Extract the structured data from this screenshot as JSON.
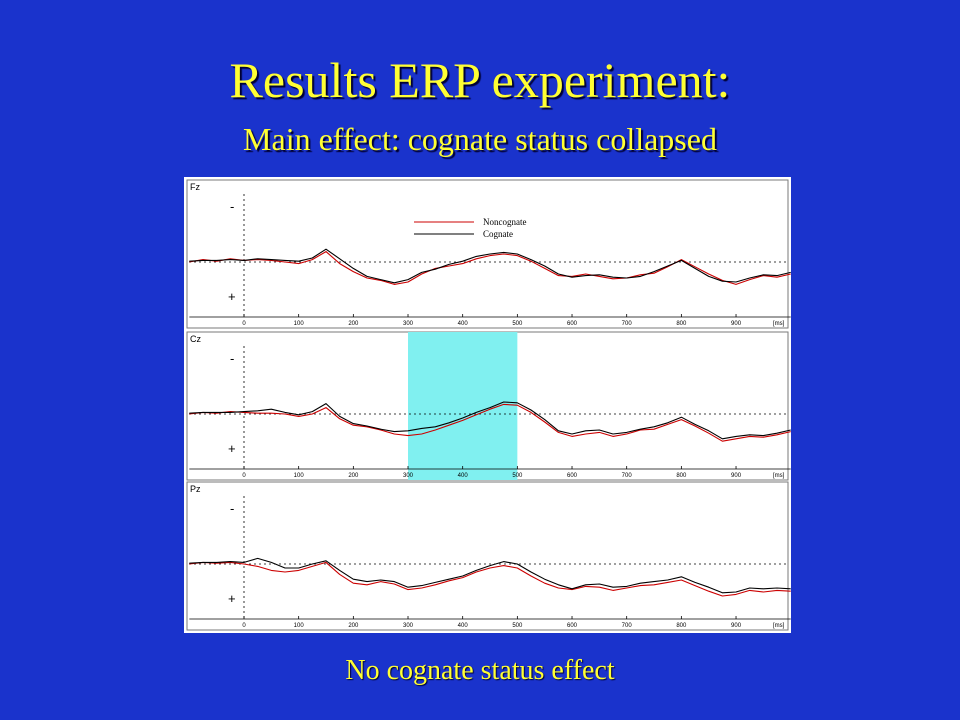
{
  "slide": {
    "title": "Results ERP experiment:",
    "subtitle": "Main effect: cognate status collapsed",
    "footer": "No cognate status effect"
  },
  "colors": {
    "background": "#1a33cc",
    "title_text": "#ffff33",
    "highlight_window": "#80f0f0",
    "noncognate": "#cc0000",
    "cognate": "#000000"
  },
  "chart_data": {
    "type": "line",
    "x_unit": "[ms]",
    "xlim": [
      -100,
      1000
    ],
    "x_ticks": [
      "0",
      "100",
      "200",
      "300",
      "400",
      "500",
      "600",
      "700",
      "800",
      "900"
    ],
    "polarity_labels": {
      "top": "-",
      "bottom": "+"
    },
    "legend": {
      "placement": "top-center",
      "entries": [
        "Noncognate",
        "Cognate"
      ]
    },
    "highlight_window": {
      "panel": "Cz",
      "x_start": 300,
      "x_end": 500
    },
    "x": [
      -100,
      -75,
      -50,
      -25,
      0,
      25,
      50,
      75,
      100,
      125,
      150,
      175,
      200,
      225,
      250,
      275,
      300,
      325,
      350,
      375,
      400,
      425,
      450,
      475,
      500,
      525,
      550,
      575,
      600,
      625,
      650,
      675,
      700,
      725,
      750,
      775,
      800,
      825,
      850,
      875,
      900,
      925,
      950,
      975,
      1000
    ],
    "panels": [
      {
        "name": "Fz",
        "series": [
          {
            "name": "Noncognate",
            "values": [
              0,
              0.3,
              0.1,
              0.4,
              0.2,
              0.3,
              0.2,
              0,
              -0.2,
              0.3,
              1.3,
              -0.2,
              -1.2,
              -2.0,
              -2.3,
              -2.8,
              -2.5,
              -1.5,
              -0.8,
              -0.5,
              -0.2,
              0.4,
              0.8,
              1.0,
              0.8,
              0.1,
              -0.8,
              -1.7,
              -1.8,
              -1.5,
              -1.8,
              -2.1,
              -2.0,
              -1.6,
              -1.4,
              -0.6,
              0.3,
              -0.6,
              -1.5,
              -2.3,
              -2.8,
              -2.2,
              -1.7,
              -1.9,
              -1.5
            ]
          },
          {
            "name": "Cognate",
            "values": [
              0.1,
              0.2,
              0.2,
              0.3,
              0.2,
              0.4,
              0.3,
              0.2,
              0.1,
              0.5,
              1.6,
              0.4,
              -0.8,
              -1.8,
              -2.2,
              -2.6,
              -2.2,
              -1.3,
              -0.9,
              -0.3,
              0.1,
              0.7,
              1.0,
              1.2,
              1.0,
              0.3,
              -0.5,
              -1.5,
              -1.9,
              -1.7,
              -1.6,
              -1.9,
              -2.0,
              -1.8,
              -1.2,
              -0.5,
              0.2,
              -0.8,
              -1.8,
              -2.4,
              -2.5,
              -2.0,
              -1.6,
              -1.7,
              -1.3
            ]
          }
        ]
      },
      {
        "name": "Cz",
        "series": [
          {
            "name": "Noncognate",
            "values": [
              0,
              0.2,
              0.1,
              0.3,
              0.2,
              0.1,
              0.1,
              0,
              -0.3,
              0,
              0.8,
              -0.6,
              -1.4,
              -1.6,
              -2.0,
              -2.5,
              -2.7,
              -2.5,
              -2.0,
              -1.4,
              -0.8,
              -0.1,
              0.6,
              1.2,
              1.1,
              0.2,
              -1.0,
              -2.3,
              -2.8,
              -2.5,
              -2.3,
              -2.8,
              -2.5,
              -2.0,
              -1.9,
              -1.3,
              -0.7,
              -1.5,
              -2.4,
              -3.4,
              -3.1,
              -2.8,
              -2.9,
              -2.6,
              -2.2
            ]
          },
          {
            "name": "Cognate",
            "values": [
              0.1,
              0.2,
              0.2,
              0.2,
              0.3,
              0.4,
              0.6,
              0.2,
              -0.1,
              0.3,
              1.3,
              -0.3,
              -1.2,
              -1.5,
              -1.9,
              -2.2,
              -2.1,
              -1.8,
              -1.6,
              -1.1,
              -0.5,
              0.2,
              0.8,
              1.5,
              1.4,
              0.5,
              -0.7,
              -2.1,
              -2.5,
              -2.1,
              -2.0,
              -2.5,
              -2.3,
              -1.9,
              -1.6,
              -1.1,
              -0.4,
              -1.3,
              -2.1,
              -3.1,
              -2.8,
              -2.6,
              -2.7,
              -2.4,
              -2.0
            ]
          }
        ]
      },
      {
        "name": "Pz",
        "series": [
          {
            "name": "Noncognate",
            "values": [
              0,
              0.2,
              0.1,
              0.2,
              0,
              -0.3,
              -0.8,
              -1.0,
              -0.8,
              -0.3,
              0.2,
              -1.3,
              -2.4,
              -2.6,
              -2.2,
              -2.5,
              -3.2,
              -3.0,
              -2.6,
              -2.1,
              -1.7,
              -1.0,
              -0.5,
              -0.2,
              -0.5,
              -1.5,
              -2.4,
              -3.0,
              -3.2,
              -2.8,
              -2.9,
              -3.3,
              -3.0,
              -2.7,
              -2.6,
              -2.3,
              -2.0,
              -2.7,
              -3.4,
              -4.0,
              -3.8,
              -3.3,
              -3.5,
              -3.3,
              -3.4
            ]
          },
          {
            "name": "Cognate",
            "values": [
              0.1,
              0.2,
              0.2,
              0.3,
              0.2,
              0.7,
              0.2,
              -0.5,
              -0.5,
              0,
              0.4,
              -0.8,
              -1.9,
              -2.2,
              -2.0,
              -2.2,
              -2.9,
              -2.7,
              -2.3,
              -1.9,
              -1.5,
              -0.8,
              -0.2,
              0.3,
              0,
              -1.0,
              -1.9,
              -2.6,
              -3.1,
              -2.6,
              -2.5,
              -2.9,
              -2.8,
              -2.4,
              -2.2,
              -2.0,
              -1.6,
              -2.3,
              -2.9,
              -3.6,
              -3.5,
              -3.0,
              -3.1,
              -3.0,
              -3.1
            ]
          }
        ]
      }
    ]
  }
}
